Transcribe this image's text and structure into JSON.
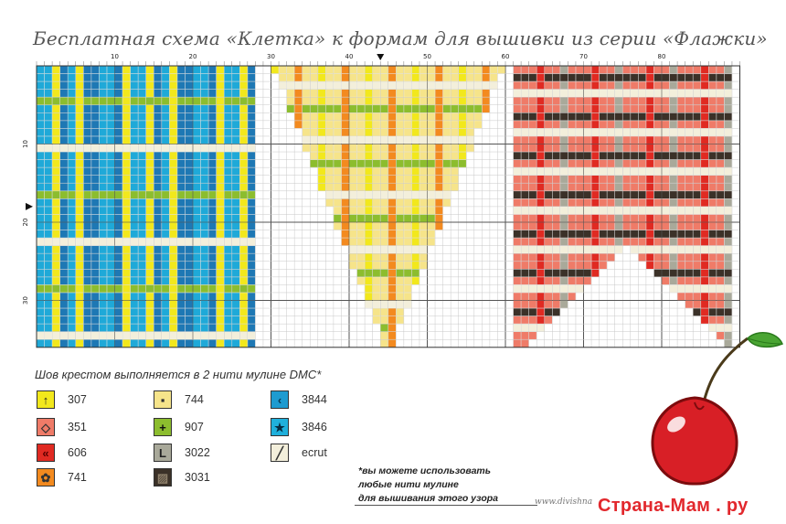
{
  "title": "Бесплатная схема «Клетка» к формам для вышивки из серии «Флажки»",
  "ruler": {
    "top_ticks": [
      "10",
      "20",
      "30",
      "40",
      "50",
      "60",
      "70",
      "80"
    ],
    "left_ticks": [
      "10",
      "20",
      "30"
    ]
  },
  "instruction": "Шов крестом выполняется в 2 нити мулине DMC*",
  "legend": [
    {
      "code": "307",
      "symbol": "↑",
      "bg": "#f2e81c",
      "fg": "#222",
      "icon": "arrow-up-icon"
    },
    {
      "code": "351",
      "symbol": "◇",
      "bg": "#ef7b68",
      "fg": "#333",
      "icon": "diamond-icon"
    },
    {
      "code": "606",
      "symbol": "«",
      "bg": "#e02a22",
      "fg": "#5a0000",
      "icon": "chevrons-icon"
    },
    {
      "code": "741",
      "symbol": "✿",
      "bg": "#f38a1f",
      "fg": "#333",
      "icon": "flower-icon"
    },
    {
      "code": "744",
      "symbol": "▪",
      "bg": "#f6e48a",
      "fg": "#333",
      "icon": "small-square-icon"
    },
    {
      "code": "907",
      "symbol": "+",
      "bg": "#8cbd2e",
      "fg": "#111",
      "icon": "plus-icon"
    },
    {
      "code": "3022",
      "symbol": "L",
      "bg": "#a9a99a",
      "fg": "#222",
      "icon": "letter-l-icon"
    },
    {
      "code": "3031",
      "symbol": "▨",
      "bg": "#3b3128",
      "fg": "#8d7f6a",
      "icon": "hatched-icon"
    },
    {
      "code": "3844",
      "symbol": "‹",
      "bg": "#1e9bd0",
      "fg": "#063a55",
      "icon": "angle-left-icon"
    },
    {
      "code": "3846",
      "symbol": "★",
      "bg": "#1fb0dc",
      "fg": "#062b40",
      "icon": "star-icon"
    },
    {
      "code": "ecrut",
      "symbol": "╱",
      "bg": "#f3efdb",
      "fg": "#333",
      "icon": "slash-icon"
    }
  ],
  "note": [
    "*вы можете использовать",
    "любые нити мулине",
    "для вышивания этого узора"
  ],
  "signature": "www.divishna",
  "brand": "Страна-Мам . ру",
  "colors": {
    "blue": "#1fa9d8",
    "blue_dark": "#1e78b4",
    "yellow": "#f2e81c",
    "cream": "#f6e48a",
    "green": "#8cbd2e",
    "orange": "#f38a1f",
    "salmon": "#ef7b68",
    "red": "#e02a22",
    "dark": "#3b3128",
    "grey": "#a9a99a",
    "ecru": "#f3efdb",
    "cherry": "#d81f26",
    "leaf": "#4aa533"
  }
}
